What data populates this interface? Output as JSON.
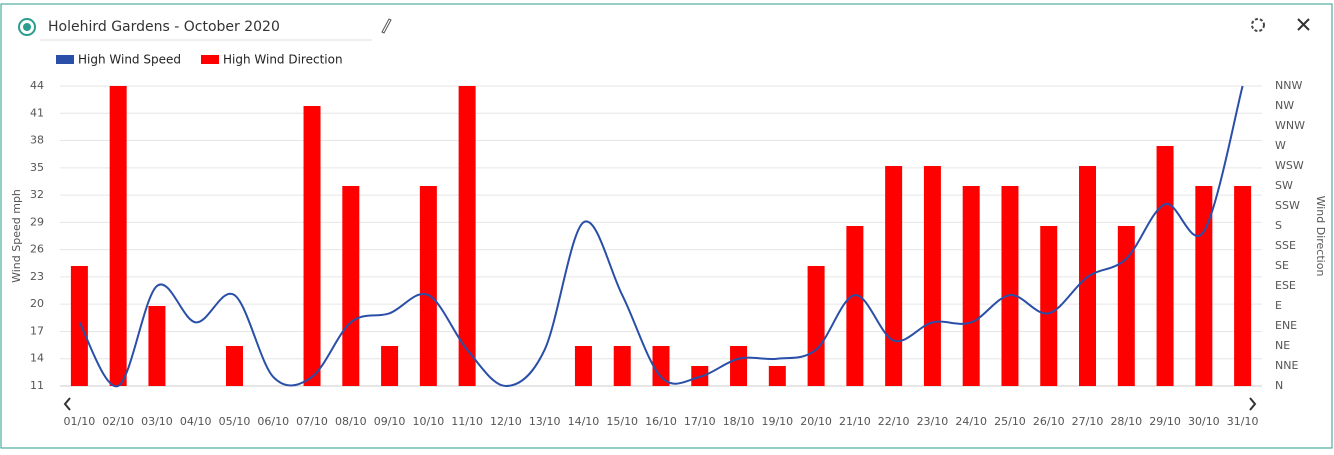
{
  "chart_data": {
    "type": "bar+line",
    "title": "Holehird Gardens - October 2020",
    "y_label": "Wind Speed mph",
    "y2_label": "Wind Direction",
    "categories": [
      "01/10",
      "02/10",
      "03/10",
      "04/10",
      "05/10",
      "06/10",
      "07/10",
      "08/10",
      "09/10",
      "10/10",
      "11/10",
      "12/10",
      "13/10",
      "14/10",
      "15/10",
      "16/10",
      "17/10",
      "18/10",
      "19/10",
      "20/10",
      "21/10",
      "22/10",
      "23/10",
      "24/10",
      "25/10",
      "26/10",
      "27/10",
      "28/10",
      "29/10",
      "30/10",
      "31/10"
    ],
    "series": [
      {
        "name": "High Wind Speed",
        "color": "#2a4fa8",
        "kind": "line",
        "values": [
          18,
          11,
          22,
          18,
          21,
          12,
          12,
          18,
          19,
          21,
          15,
          11,
          15,
          29,
          21,
          12,
          12,
          14,
          14,
          15,
          21,
          16,
          18,
          18,
          21,
          19,
          23,
          25,
          31,
          28,
          44
        ]
      },
      {
        "name": "High Wind Direction",
        "color": "#ff0000",
        "kind": "bar",
        "axis": "y2",
        "values": [
          6,
          15,
          4,
          null,
          2,
          null,
          14,
          10,
          2,
          10,
          15,
          null,
          null,
          2,
          2,
          2,
          1,
          2,
          1,
          6,
          8,
          11,
          11,
          10,
          10,
          8,
          11,
          8,
          12,
          10,
          10
        ]
      }
    ],
    "ylim": [
      11,
      44
    ],
    "yticks": [
      11,
      14,
      17,
      20,
      23,
      26,
      29,
      32,
      35,
      38,
      41,
      44
    ],
    "y2lim": [
      0,
      15
    ],
    "y2ticks": [
      {
        "value": 0,
        "label": "N"
      },
      {
        "value": 1,
        "label": "NNE"
      },
      {
        "value": 2,
        "label": "NE"
      },
      {
        "value": 3,
        "label": "ENE"
      },
      {
        "value": 4,
        "label": "E"
      },
      {
        "value": 5,
        "label": "ESE"
      },
      {
        "value": 6,
        "label": "SE"
      },
      {
        "value": 7,
        "label": "SSE"
      },
      {
        "value": 8,
        "label": "S"
      },
      {
        "value": 9,
        "label": "SSW"
      },
      {
        "value": 10,
        "label": "SW"
      },
      {
        "value": 11,
        "label": "WSW"
      },
      {
        "value": 12,
        "label": "W"
      },
      {
        "value": 13,
        "label": "WNW"
      },
      {
        "value": 14,
        "label": "NW"
      },
      {
        "value": 15,
        "label": "NNW"
      }
    ],
    "grid": true
  }
}
